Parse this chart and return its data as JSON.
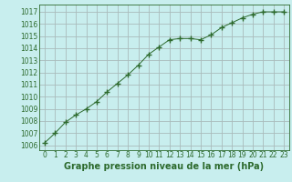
{
  "x": [
    0,
    1,
    2,
    3,
    4,
    5,
    6,
    7,
    8,
    9,
    10,
    11,
    12,
    13,
    14,
    15,
    16,
    17,
    18,
    19,
    20,
    21,
    22,
    23
  ],
  "y": [
    1006.2,
    1007.0,
    1007.9,
    1008.5,
    1009.0,
    1009.6,
    1010.4,
    1011.1,
    1011.8,
    1012.6,
    1013.5,
    1014.1,
    1014.7,
    1014.8,
    1014.8,
    1014.7,
    1015.1,
    1015.7,
    1016.1,
    1016.5,
    1016.8,
    1017.0,
    1017.0,
    1017.0
  ],
  "line_color": "#2d6a2d",
  "marker": "+",
  "marker_size": 4,
  "marker_lw": 1.0,
  "bg_color": "#c8eeee",
  "grid_color": "#aabbbb",
  "ylabel_ticks": [
    1006,
    1007,
    1008,
    1009,
    1010,
    1011,
    1012,
    1013,
    1014,
    1015,
    1016,
    1017
  ],
  "xlabel_label": "Graphe pression niveau de la mer (hPa)",
  "xlim": [
    -0.5,
    23.5
  ],
  "ylim": [
    1005.6,
    1017.6
  ],
  "tick_color": "#2d6a2d",
  "label_fontsize": 5.5,
  "xlabel_fontsize": 7.0
}
